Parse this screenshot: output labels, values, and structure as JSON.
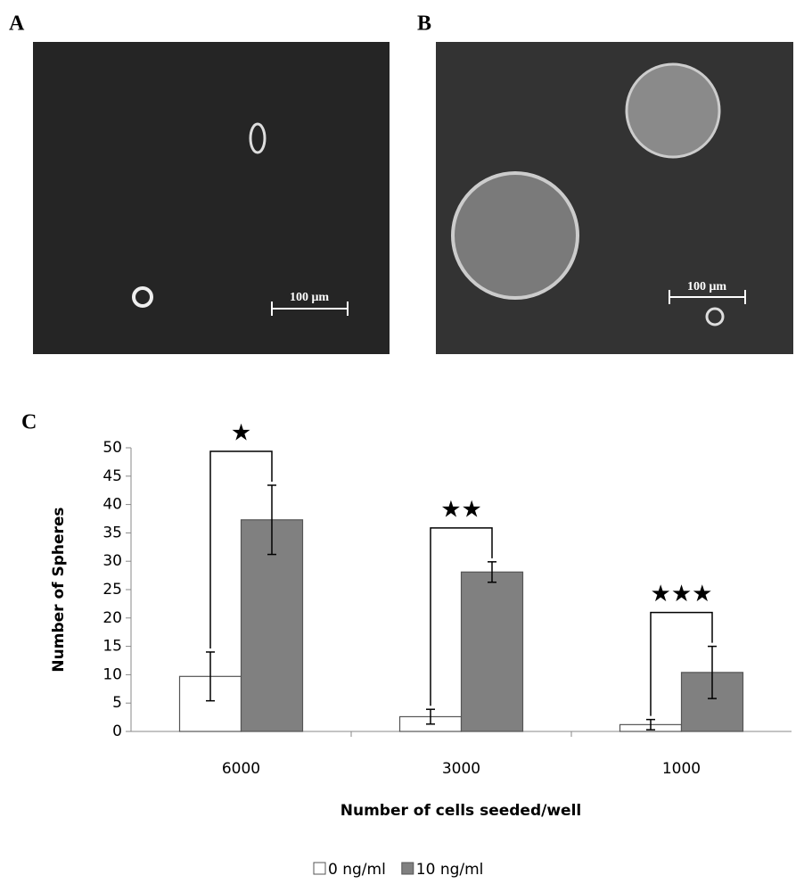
{
  "panels": [
    {
      "label": "A",
      "scale_bar": "100 μm"
    },
    {
      "label": "B",
      "scale_bar": "100 μm"
    }
  ],
  "chart_label": "C",
  "chart_data": {
    "type": "bar",
    "categories": [
      "6000",
      "3000",
      "1000"
    ],
    "series": [
      {
        "name": "0 ng/ml",
        "color": "#ffffff",
        "values": [
          9.7,
          2.6,
          1.2
        ],
        "errors": [
          4.3,
          1.3,
          0.9
        ]
      },
      {
        "name": "10 ng/ml",
        "color": "#808080",
        "values": [
          37.3,
          28.1,
          10.4
        ],
        "errors": [
          6.1,
          1.8,
          4.6
        ]
      }
    ],
    "annotations": [
      "★",
      "★★",
      "★★★"
    ],
    "ylim": [
      0,
      50
    ],
    "yticks": [
      0,
      5,
      10,
      15,
      20,
      25,
      30,
      35,
      40,
      45,
      50
    ],
    "ylabel": "Number of Spheres",
    "xlabel": "Number of cells seeded/well",
    "grid": false
  }
}
